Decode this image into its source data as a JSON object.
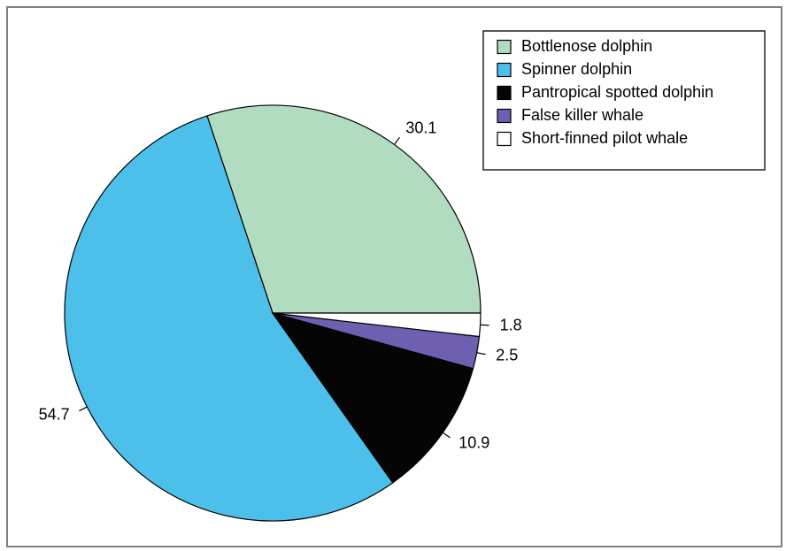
{
  "chart_data": {
    "type": "pie",
    "start_angle_deg": 0,
    "direction": "counterclockwise",
    "legend_position": "top-right",
    "slices": [
      {
        "name": "Bottlenose dolphin",
        "value": 30.1,
        "label": "30.1",
        "color": "#b2dcc0"
      },
      {
        "name": "Spinner dolphin",
        "value": 54.7,
        "label": "54.7",
        "color": "#4cc0eb"
      },
      {
        "name": "Pantropical spotted dolphin",
        "value": 10.9,
        "label": "10.9",
        "color": "#050505"
      },
      {
        "name": "False killer whale",
        "value": 2.5,
        "label": "2.5",
        "color": "#6e5fb0"
      },
      {
        "name": "Short-finned pilot whale",
        "value": 1.8,
        "label": "1.8",
        "color": "#ffffff"
      }
    ]
  }
}
